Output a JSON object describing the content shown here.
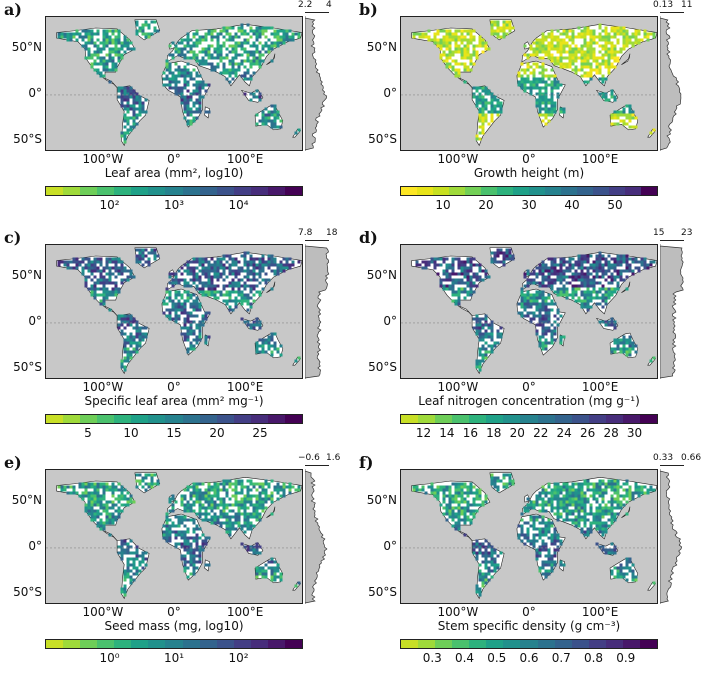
{
  "colors": {
    "ocean": "#c8c8c8",
    "land_nodata": "#ffffff",
    "border": "#222222",
    "viridis": [
      "#c8df26",
      "#9fda3a",
      "#6ece58",
      "#4ac16d",
      "#2db27d",
      "#1fa188",
      "#21918c",
      "#26828e",
      "#2c728e",
      "#33638d",
      "#3b528b",
      "#433e85",
      "#472d7b",
      "#48186a",
      "#440154"
    ],
    "height_ramp": [
      "#fde725",
      "#e8e419",
      "#c7e020",
      "#9fda3a",
      "#73d056",
      "#4ac16d",
      "#2db27d",
      "#1fa188",
      "#21918c",
      "#26828e",
      "#2c728e",
      "#33638d",
      "#3b528b",
      "#433e85",
      "#472d7b",
      "#440154"
    ]
  },
  "axis": {
    "lat_labels": [
      "50°N",
      "0°",
      "50°S"
    ],
    "lon_labels": [
      "100°W",
      "0°",
      "100°E"
    ]
  },
  "panels": [
    {
      "letter": "a)",
      "label": "Leaf area (mm², log10)",
      "profile_ticks": [
        "2.2",
        "4"
      ],
      "colorbar_ticks": [
        "10²",
        "10³",
        "10⁴"
      ],
      "ramp": "viridis"
    },
    {
      "letter": "b)",
      "label": "Growth height (m)",
      "profile_ticks": [
        "0.13",
        "11"
      ],
      "colorbar_ticks": [
        "10",
        "20",
        "30",
        "40",
        "50"
      ],
      "ramp": "height_ramp"
    },
    {
      "letter": "c)",
      "label": "Specific leaf area (mm² mg⁻¹)",
      "profile_ticks": [
        "7.8",
        "18"
      ],
      "colorbar_ticks": [
        "5",
        "10",
        "15",
        "20",
        "25"
      ],
      "ramp": "viridis"
    },
    {
      "letter": "d)",
      "label": "Leaf nitrogen concentration (mg g⁻¹)",
      "profile_ticks": [
        "15",
        "23"
      ],
      "colorbar_ticks": [
        "12",
        "14",
        "16",
        "18",
        "20",
        "22",
        "24",
        "26",
        "28",
        "30"
      ],
      "ramp": "viridis"
    },
    {
      "letter": "e)",
      "label": "Seed mass (mg, log10)",
      "profile_ticks": [
        "−0.6",
        "1.6"
      ],
      "colorbar_ticks": [
        "10⁰",
        "10¹",
        "10²"
      ],
      "ramp": "viridis"
    },
    {
      "letter": "f)",
      "label": "Stem specific density (g cm⁻³)",
      "profile_ticks": [
        "0.33",
        "0.66"
      ],
      "colorbar_ticks": [
        "0.3",
        "0.4",
        "0.5",
        "0.6",
        "0.7",
        "0.8",
        "0.9"
      ],
      "ramp": "viridis"
    }
  ]
}
